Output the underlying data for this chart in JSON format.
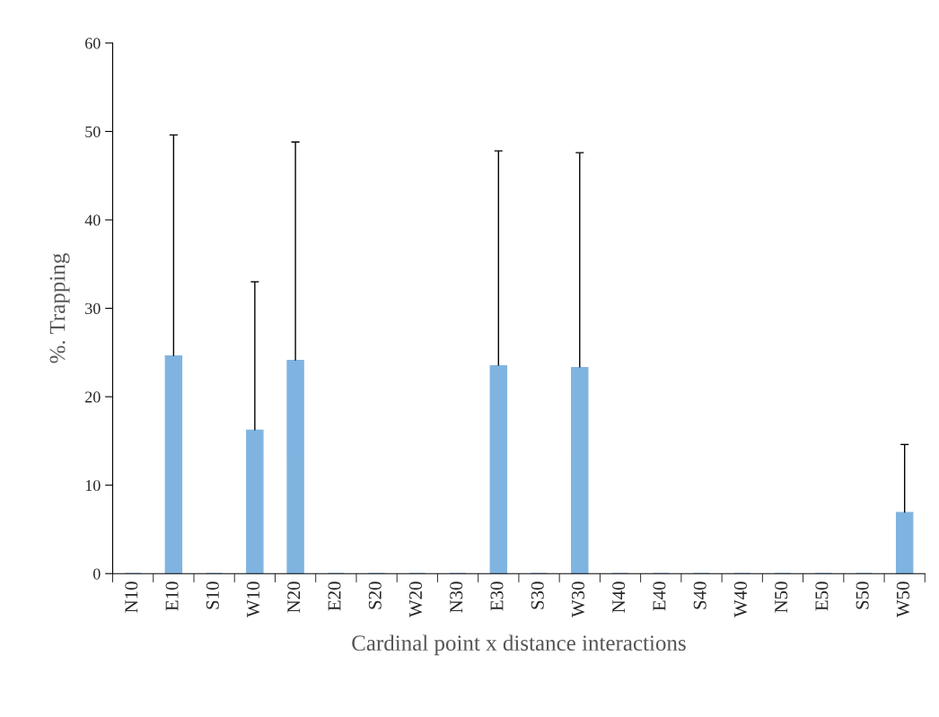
{
  "chart_data": {
    "type": "bar",
    "xlabel": "Cardinal point x distance interactions",
    "ylabel": "%. Trapping",
    "categories": [
      "N10",
      "E10",
      "S10",
      "W10",
      "N20",
      "E20",
      "S20",
      "W20",
      "N30",
      "E30",
      "S30",
      "W30",
      "N40",
      "E40",
      "S40",
      "W40",
      "N50",
      "E50",
      "S50",
      "W50"
    ],
    "values": [
      0,
      24.6,
      0,
      16.2,
      24.1,
      0,
      0,
      0,
      0,
      23.5,
      0,
      23.3,
      0,
      0,
      0,
      0,
      0,
      0,
      0,
      6.9
    ],
    "errors": [
      null,
      [
        24.6,
        49.6
      ],
      null,
      [
        16.2,
        33.0
      ],
      [
        24.1,
        48.8
      ],
      null,
      null,
      null,
      null,
      [
        23.5,
        47.8
      ],
      null,
      [
        23.3,
        47.6
      ],
      null,
      null,
      null,
      null,
      null,
      null,
      null,
      [
        6.9,
        14.6
      ]
    ],
    "color": "#80b4e0",
    "ylim": [
      0,
      60
    ],
    "yticks": [
      0,
      10,
      20,
      30,
      40,
      50,
      60
    ],
    "grid": false
  }
}
